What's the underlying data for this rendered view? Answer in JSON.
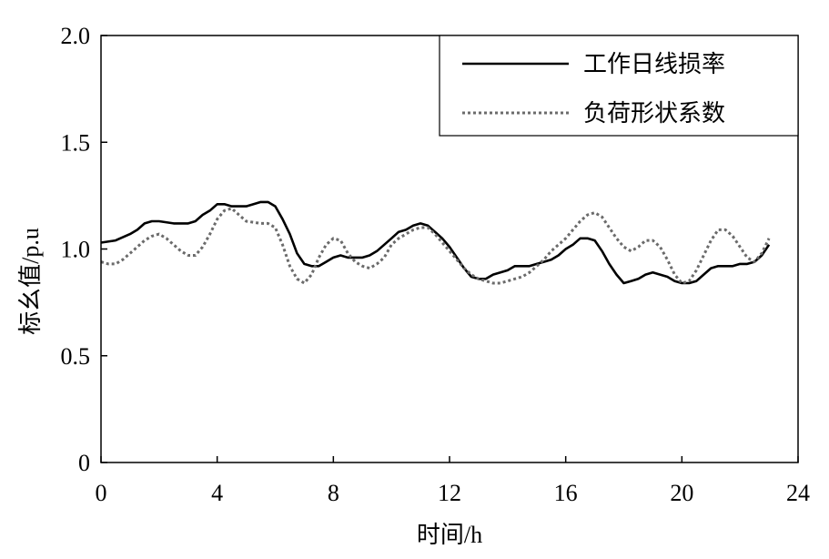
{
  "chart_data": {
    "type": "line",
    "title": "",
    "xlabel": "时间/h",
    "ylabel": "标幺值/p.u",
    "xlim": [
      0,
      24
    ],
    "ylim": [
      0,
      2.0
    ],
    "xticks": [
      0,
      4,
      8,
      12,
      16,
      20,
      24
    ],
    "yticks": [
      0,
      0.5,
      1.0,
      1.5,
      2.0
    ],
    "xtick_labels": [
      "0",
      "4",
      "8",
      "12",
      "16",
      "20",
      "24"
    ],
    "ytick_labels": [
      "0",
      "0.5",
      "1.0",
      "1.5",
      "2.0"
    ],
    "grid": false,
    "legend_position": "top-right",
    "series": [
      {
        "name": "工作日线损率",
        "style": "solid",
        "color": "#000000",
        "x": [
          0,
          0.5,
          1,
          1.25,
          1.5,
          1.75,
          2,
          2.5,
          3,
          3.25,
          3.5,
          3.75,
          4,
          4.25,
          4.5,
          5,
          5.25,
          5.5,
          5.75,
          6,
          6.25,
          6.5,
          6.75,
          7,
          7.25,
          7.5,
          7.75,
          8,
          8.25,
          8.5,
          8.75,
          9,
          9.25,
          9.5,
          9.75,
          10,
          10.25,
          10.5,
          10.75,
          11,
          11.25,
          11.5,
          11.75,
          12,
          12.25,
          12.5,
          12.75,
          13,
          13.25,
          13.5,
          13.75,
          14,
          14.25,
          14.5,
          14.75,
          15,
          15.25,
          15.5,
          15.75,
          16,
          16.25,
          16.5,
          16.75,
          17,
          17.25,
          17.5,
          17.75,
          18,
          18.25,
          18.5,
          18.75,
          19,
          19.25,
          19.5,
          19.75,
          20,
          20.25,
          20.5,
          20.75,
          21,
          21.25,
          21.5,
          21.75,
          22,
          22.25,
          22.5,
          22.75,
          23
        ],
        "values": [
          1.03,
          1.04,
          1.07,
          1.09,
          1.12,
          1.13,
          1.13,
          1.12,
          1.12,
          1.13,
          1.16,
          1.18,
          1.21,
          1.21,
          1.2,
          1.2,
          1.21,
          1.22,
          1.22,
          1.2,
          1.14,
          1.07,
          0.98,
          0.93,
          0.92,
          0.92,
          0.94,
          0.96,
          0.97,
          0.96,
          0.96,
          0.96,
          0.97,
          0.99,
          1.02,
          1.05,
          1.08,
          1.09,
          1.11,
          1.12,
          1.11,
          1.08,
          1.05,
          1.01,
          0.96,
          0.91,
          0.87,
          0.86,
          0.86,
          0.88,
          0.89,
          0.9,
          0.92,
          0.92,
          0.92,
          0.93,
          0.94,
          0.95,
          0.97,
          1.0,
          1.02,
          1.05,
          1.05,
          1.04,
          0.99,
          0.93,
          0.88,
          0.84,
          0.85,
          0.86,
          0.88,
          0.89,
          0.88,
          0.87,
          0.85,
          0.84,
          0.84,
          0.85,
          0.88,
          0.91,
          0.92,
          0.92,
          0.92,
          0.93,
          0.93,
          0.94,
          0.97,
          1.02
        ]
      },
      {
        "name": "负荷形状系数",
        "style": "dotted",
        "color": "#6b6b6b",
        "x": [
          0,
          0.25,
          0.5,
          0.75,
          1,
          1.25,
          1.5,
          1.75,
          2,
          2.25,
          2.5,
          2.75,
          3,
          3.25,
          3.5,
          3.75,
          4,
          4.25,
          4.5,
          4.75,
          5,
          5.5,
          5.75,
          6,
          6.25,
          6.5,
          6.75,
          7,
          7.25,
          7.5,
          7.75,
          8,
          8.25,
          8.5,
          8.75,
          9,
          9.25,
          9.5,
          9.75,
          10,
          10.25,
          10.5,
          10.75,
          11,
          11.25,
          11.5,
          11.75,
          12,
          12.25,
          12.5,
          12.75,
          13,
          13.25,
          13.5,
          13.75,
          14,
          14.25,
          14.5,
          14.75,
          15,
          15.25,
          15.5,
          15.75,
          16,
          16.25,
          16.5,
          16.75,
          17,
          17.25,
          17.5,
          17.75,
          18,
          18.25,
          18.5,
          18.75,
          19,
          19.25,
          19.5,
          19.75,
          20,
          20.25,
          20.5,
          20.75,
          21,
          21.25,
          21.5,
          21.75,
          22,
          22.25,
          22.5,
          22.75,
          23
        ],
        "values": [
          0.94,
          0.93,
          0.93,
          0.95,
          0.98,
          1.01,
          1.04,
          1.06,
          1.07,
          1.05,
          1.02,
          0.99,
          0.97,
          0.97,
          1.01,
          1.07,
          1.14,
          1.18,
          1.19,
          1.16,
          1.13,
          1.12,
          1.12,
          1.1,
          1.02,
          0.92,
          0.86,
          0.84,
          0.88,
          0.96,
          1.02,
          1.05,
          1.04,
          0.98,
          0.94,
          0.92,
          0.91,
          0.93,
          0.96,
          1.02,
          1.05,
          1.07,
          1.09,
          1.1,
          1.1,
          1.07,
          1.03,
          0.99,
          0.95,
          0.91,
          0.88,
          0.86,
          0.85,
          0.84,
          0.84,
          0.85,
          0.86,
          0.87,
          0.89,
          0.92,
          0.95,
          0.99,
          1.02,
          1.05,
          1.09,
          1.13,
          1.16,
          1.17,
          1.15,
          1.1,
          1.05,
          1.01,
          0.99,
          1.01,
          1.04,
          1.04,
          1.01,
          0.95,
          0.88,
          0.84,
          0.85,
          0.9,
          0.97,
          1.04,
          1.09,
          1.09,
          1.06,
          1.01,
          0.96,
          0.94,
          0.98,
          1.05
        ]
      }
    ]
  }
}
